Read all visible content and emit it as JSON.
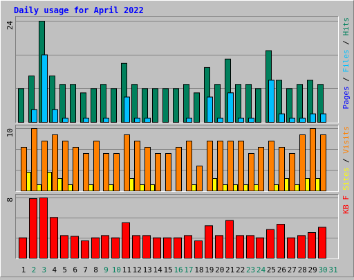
{
  "chart_data": {
    "type": "bar",
    "title": "Daily usage for April 2022",
    "categories": [
      "1",
      "2",
      "3",
      "4",
      "5",
      "6",
      "7",
      "8",
      "9",
      "10",
      "11",
      "12",
      "13",
      "14",
      "15",
      "16",
      "17",
      "18",
      "19",
      "20",
      "21",
      "22",
      "23",
      "24",
      "25",
      "26",
      "27",
      "28",
      "29",
      "30",
      "31"
    ],
    "highlight": [
      false,
      true,
      true,
      false,
      false,
      false,
      false,
      false,
      true,
      true,
      false,
      false,
      false,
      false,
      false,
      true,
      true,
      false,
      false,
      false,
      false,
      false,
      true,
      true,
      false,
      false,
      false,
      false,
      false,
      true,
      true
    ],
    "highlight_color": "#00805c",
    "legend_separator": "/",
    "panels": [
      {
        "ylim": [
          0,
          24
        ],
        "yticks": [
          24
        ],
        "series": [
          {
            "name": "Hits",
            "color": "#00805c",
            "values": [
              8,
              11,
              24,
              11,
              9,
              9,
              7,
              8,
              9,
              8,
              14,
              9,
              8,
              8,
              8,
              8,
              9,
              7,
              13,
              9,
              15,
              9,
              9,
              8,
              17,
              10,
              8,
              9,
              10,
              9,
              0
            ]
          },
          {
            "name": "Files",
            "color": "#00c0ff",
            "values": [
              0,
              3,
              16,
              3,
              1,
              0,
              1,
              0,
              1,
              0,
              6,
              1,
              1,
              0,
              0,
              0,
              1,
              0,
              6,
              1,
              7,
              1,
              1,
              0,
              10,
              2,
              1,
              1,
              2,
              2,
              0
            ]
          },
          {
            "name": "Pages",
            "color": "#0000ff",
            "values": [
              0,
              3,
              16,
              3,
              1,
              0,
              1,
              0,
              1,
              0,
              6,
              1,
              1,
              0,
              0,
              0,
              1,
              0,
              6,
              1,
              7,
              1,
              1,
              0,
              10,
              2,
              1,
              1,
              2,
              2,
              0
            ]
          }
        ]
      },
      {
        "ylim": [
          0,
          10
        ],
        "yticks": [
          10
        ],
        "series": [
          {
            "name": "Visits",
            "color": "#ff8000",
            "values": [
              7,
              10,
              8,
              9,
              8,
              7,
              6,
              8,
              6,
              6,
              9,
              8,
              7,
              6,
              6,
              7,
              8,
              4,
              8,
              8,
              8,
              8,
              6,
              7,
              8,
              7,
              6,
              9,
              10,
              9,
              0
            ]
          },
          {
            "name": "Sites",
            "color": "#ffff00",
            "values": [
              3,
              1,
              3,
              2,
              1,
              0,
              1,
              0,
              1,
              0,
              2,
              1,
              1,
              0,
              0,
              0,
              1,
              0,
              2,
              1,
              1,
              1,
              1,
              0,
              1,
              2,
              1,
              2,
              2,
              0,
              0
            ]
          }
        ]
      },
      {
        "ylim": [
          0,
          8
        ],
        "yticks": [
          8
        ],
        "series": [
          {
            "name": "KB F",
            "color": "#ff0000",
            "values": [
              2.7,
              7.9,
              8,
              5.4,
              3,
              2.9,
              2.3,
              2.7,
              3,
              2.7,
              4.7,
              3,
              3,
              2.7,
              2.7,
              2.7,
              3,
              2.3,
              4.3,
              3,
              5,
              3,
              3,
              2.7,
              3.8,
              4.5,
              2.7,
              3,
              3.4,
              4.1,
              0
            ]
          }
        ]
      }
    ]
  }
}
